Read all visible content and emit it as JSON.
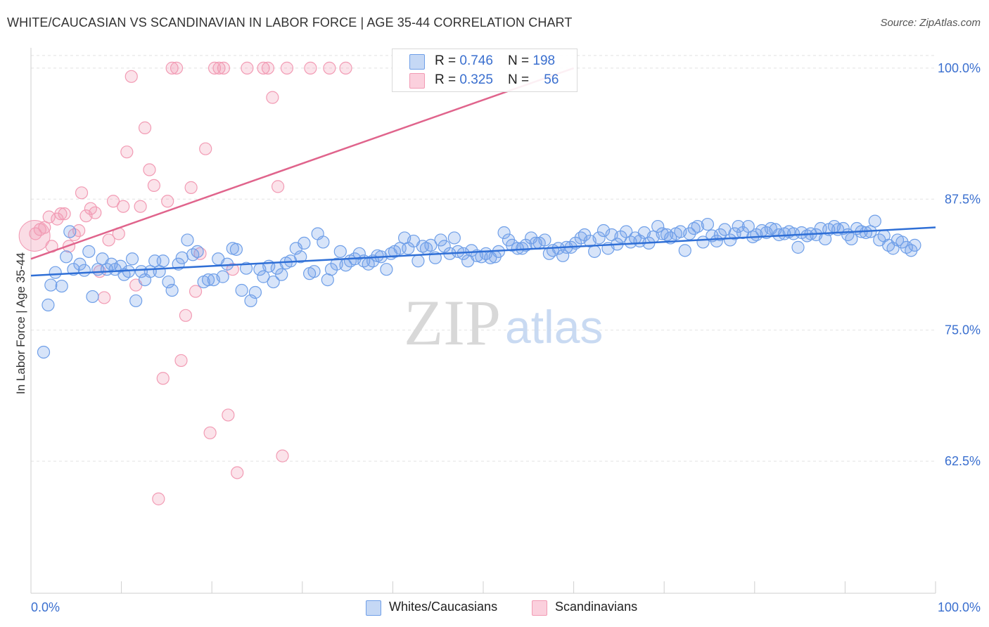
{
  "title": "WHITE/CAUCASIAN VS SCANDINAVIAN IN LABOR FORCE | AGE 35-44 CORRELATION CHART",
  "source": "Source: ZipAtlas.com",
  "watermark": {
    "zip": "ZIP",
    "atlas": "atlas"
  },
  "legend": {
    "rows": [
      {
        "r_label": "R = ",
        "r_value": "0.746",
        "n_label": "N = ",
        "n_value": "198"
      },
      {
        "r_label": "R = ",
        "r_value": "0.325",
        "n_label": "N = ",
        "n_value": "56"
      }
    ]
  },
  "bottom_legend": [
    "Whites/Caucasians",
    "Scandinavians"
  ],
  "chart_data": {
    "type": "scatter",
    "title": "WHITE/CAUCASIAN VS SCANDINAVIAN IN LABOR FORCE | AGE 35-44 CORRELATION CHART",
    "xlabel": "",
    "ylabel": "In Labor Force | Age 35-44",
    "xlim": [
      0,
      100
    ],
    "ylim": [
      50.5,
      101.2
    ],
    "x_tick_labels": [
      "0.0%",
      "100.0%"
    ],
    "y_tick_labels": [
      "100.0%",
      "87.5%",
      "75.0%",
      "62.5%"
    ],
    "y_ticks": [
      100,
      87.5,
      75,
      62.5
    ],
    "grid": true,
    "legend_placement": "top-center",
    "colors": {
      "whites": "#6f9fe8",
      "whites_line": "#2f6fd6",
      "scand": "#f29bb4",
      "scand_line": "#e0648c"
    },
    "series": [
      {
        "name": "Whites/Caucasians",
        "r": 0.746,
        "n": 198,
        "trend": [
          [
            0,
            80.2
          ],
          [
            100,
            84.8
          ]
        ],
        "points": [
          [
            1.4,
            72.9
          ],
          [
            1.9,
            77.4
          ],
          [
            2.2,
            79.3
          ],
          [
            2.7,
            80.5
          ],
          [
            3.4,
            79.2
          ],
          [
            3.9,
            82.0
          ],
          [
            4.3,
            84.4
          ],
          [
            4.7,
            80.8
          ],
          [
            5.4,
            81.3
          ],
          [
            5.9,
            80.7
          ],
          [
            6.4,
            82.5
          ],
          [
            6.8,
            78.2
          ],
          [
            7.4,
            80.8
          ],
          [
            7.9,
            81.8
          ],
          [
            8.4,
            80.8
          ],
          [
            8.9,
            81.3
          ],
          [
            9.3,
            80.8
          ],
          [
            9.9,
            81.1
          ],
          [
            10.3,
            80.3
          ],
          [
            10.8,
            80.6
          ],
          [
            11.2,
            81.8
          ],
          [
            11.6,
            77.8
          ],
          [
            12.2,
            80.6
          ],
          [
            12.6,
            79.8
          ],
          [
            13.2,
            80.6
          ],
          [
            13.7,
            81.6
          ],
          [
            14.2,
            80.6
          ],
          [
            14.6,
            81.6
          ],
          [
            15.2,
            79.6
          ],
          [
            15.6,
            78.8
          ],
          [
            16.3,
            81.3
          ],
          [
            16.7,
            81.9
          ],
          [
            17.3,
            83.6
          ],
          [
            17.9,
            82.2
          ],
          [
            18.4,
            82.5
          ],
          [
            19.1,
            79.6
          ],
          [
            19.6,
            79.8
          ],
          [
            20.2,
            79.8
          ],
          [
            20.7,
            81.8
          ],
          [
            21.2,
            80.1
          ],
          [
            21.7,
            81.3
          ],
          [
            22.3,
            82.8
          ],
          [
            22.7,
            82.7
          ],
          [
            23.3,
            78.8
          ],
          [
            23.8,
            80.9
          ],
          [
            24.3,
            77.8
          ],
          [
            24.8,
            78.6
          ],
          [
            25.3,
            80.8
          ],
          [
            25.7,
            80.1
          ],
          [
            26.3,
            81.1
          ],
          [
            26.8,
            79.6
          ],
          [
            27.2,
            80.9
          ],
          [
            27.7,
            80.3
          ],
          [
            28.2,
            81.4
          ],
          [
            28.7,
            81.6
          ],
          [
            29.3,
            82.8
          ],
          [
            29.8,
            82.0
          ],
          [
            30.2,
            83.3
          ],
          [
            30.8,
            80.4
          ],
          [
            31.3,
            80.6
          ],
          [
            31.7,
            84.2
          ],
          [
            32.3,
            83.4
          ],
          [
            32.8,
            79.8
          ],
          [
            33.2,
            80.8
          ],
          [
            33.8,
            81.3
          ],
          [
            34.2,
            82.5
          ],
          [
            34.8,
            81.2
          ],
          [
            35.3,
            81.6
          ],
          [
            35.8,
            81.8
          ],
          [
            36.3,
            82.3
          ],
          [
            36.8,
            81.6
          ],
          [
            37.3,
            81.3
          ],
          [
            37.8,
            81.6
          ],
          [
            38.3,
            82.1
          ],
          [
            38.7,
            82.0
          ],
          [
            39.3,
            80.8
          ],
          [
            39.8,
            82.3
          ],
          [
            40.2,
            82.5
          ],
          [
            40.8,
            82.8
          ],
          [
            41.3,
            83.8
          ],
          [
            41.7,
            82.8
          ],
          [
            42.3,
            83.5
          ],
          [
            42.8,
            81.6
          ],
          [
            43.3,
            83.0
          ],
          [
            43.7,
            82.8
          ],
          [
            44.2,
            83.1
          ],
          [
            44.7,
            81.9
          ],
          [
            45.3,
            83.6
          ],
          [
            45.7,
            83.0
          ],
          [
            46.3,
            82.3
          ],
          [
            46.8,
            83.8
          ],
          [
            47.2,
            82.5
          ],
          [
            47.8,
            82.3
          ],
          [
            48.3,
            81.6
          ],
          [
            48.7,
            82.6
          ],
          [
            49.3,
            82.1
          ],
          [
            49.8,
            82.0
          ],
          [
            50.3,
            82.3
          ],
          [
            50.8,
            81.9
          ],
          [
            51.3,
            82.0
          ],
          [
            51.7,
            82.5
          ],
          [
            52.3,
            84.3
          ],
          [
            52.8,
            83.6
          ],
          [
            53.2,
            83.1
          ],
          [
            53.8,
            82.8
          ],
          [
            54.3,
            82.8
          ],
          [
            54.7,
            83.1
          ],
          [
            55.3,
            83.8
          ],
          [
            55.8,
            83.3
          ],
          [
            56.2,
            83.3
          ],
          [
            56.8,
            83.6
          ],
          [
            57.3,
            82.3
          ],
          [
            57.7,
            82.6
          ],
          [
            58.3,
            82.8
          ],
          [
            58.8,
            82.1
          ],
          [
            59.2,
            82.9
          ],
          [
            59.7,
            82.9
          ],
          [
            60.2,
            83.3
          ],
          [
            60.8,
            83.8
          ],
          [
            61.2,
            84.1
          ],
          [
            61.8,
            83.5
          ],
          [
            62.3,
            82.5
          ],
          [
            62.8,
            83.8
          ],
          [
            63.3,
            84.5
          ],
          [
            63.8,
            82.8
          ],
          [
            64.2,
            84.1
          ],
          [
            64.8,
            83.2
          ],
          [
            65.2,
            83.9
          ],
          [
            65.8,
            84.4
          ],
          [
            66.3,
            83.4
          ],
          [
            66.8,
            83.8
          ],
          [
            67.3,
            83.5
          ],
          [
            67.8,
            84.3
          ],
          [
            68.3,
            83.3
          ],
          [
            68.8,
            83.9
          ],
          [
            69.3,
            84.9
          ],
          [
            69.8,
            84.2
          ],
          [
            70.3,
            84.1
          ],
          [
            70.7,
            83.8
          ],
          [
            71.3,
            84.2
          ],
          [
            71.8,
            84.4
          ],
          [
            72.3,
            82.6
          ],
          [
            72.8,
            84.2
          ],
          [
            73.3,
            84.7
          ],
          [
            73.7,
            84.9
          ],
          [
            74.3,
            83.4
          ],
          [
            74.8,
            85.1
          ],
          [
            75.3,
            84.0
          ],
          [
            75.8,
            83.5
          ],
          [
            76.2,
            84.1
          ],
          [
            76.7,
            84.6
          ],
          [
            77.3,
            83.6
          ],
          [
            77.8,
            84.2
          ],
          [
            78.2,
            84.9
          ],
          [
            78.7,
            84.3
          ],
          [
            79.3,
            84.9
          ],
          [
            79.8,
            83.9
          ],
          [
            80.2,
            84.1
          ],
          [
            80.8,
            84.5
          ],
          [
            81.3,
            84.3
          ],
          [
            81.8,
            84.7
          ],
          [
            82.3,
            84.6
          ],
          [
            82.7,
            84.1
          ],
          [
            83.3,
            84.2
          ],
          [
            83.8,
            84.4
          ],
          [
            84.3,
            84.2
          ],
          [
            84.8,
            82.9
          ],
          [
            85.2,
            84.3
          ],
          [
            85.8,
            84.0
          ],
          [
            86.2,
            84.2
          ],
          [
            86.8,
            84.1
          ],
          [
            87.3,
            84.7
          ],
          [
            87.8,
            83.7
          ],
          [
            88.2,
            84.6
          ],
          [
            88.8,
            84.9
          ],
          [
            89.2,
            84.6
          ],
          [
            89.8,
            84.7
          ],
          [
            90.3,
            84.1
          ],
          [
            90.7,
            83.7
          ],
          [
            91.3,
            84.7
          ],
          [
            91.8,
            84.4
          ],
          [
            92.3,
            84.3
          ],
          [
            92.8,
            84.4
          ],
          [
            93.3,
            85.4
          ],
          [
            93.8,
            83.6
          ],
          [
            94.3,
            84.0
          ],
          [
            94.8,
            83.1
          ],
          [
            95.3,
            82.8
          ],
          [
            95.8,
            83.6
          ],
          [
            96.3,
            83.4
          ],
          [
            96.8,
            82.9
          ],
          [
            97.3,
            82.6
          ],
          [
            97.7,
            83.1
          ]
        ]
      },
      {
        "name": "Scandinavians",
        "r": 0.325,
        "n": 56,
        "trend": [
          [
            0,
            81.8
          ],
          [
            60,
            100.0
          ]
        ],
        "points": [
          [
            0.5,
            84.2
          ],
          [
            1.0,
            84.6
          ],
          [
            1.5,
            84.8
          ],
          [
            2.0,
            85.8
          ],
          [
            2.3,
            83.0
          ],
          [
            2.9,
            85.6
          ],
          [
            3.3,
            86.1
          ],
          [
            3.7,
            86.1
          ],
          [
            4.2,
            83.0
          ],
          [
            4.8,
            84.1
          ],
          [
            5.3,
            84.5
          ],
          [
            5.6,
            88.1
          ],
          [
            6.1,
            85.9
          ],
          [
            6.6,
            86.6
          ],
          [
            7.1,
            86.2
          ],
          [
            7.6,
            80.6
          ],
          [
            8.1,
            78.1
          ],
          [
            8.6,
            83.6
          ],
          [
            9.1,
            87.3
          ],
          [
            9.7,
            84.2
          ],
          [
            10.2,
            86.8
          ],
          [
            10.6,
            92.0
          ],
          [
            11.1,
            99.2
          ],
          [
            11.6,
            79.3
          ],
          [
            12.1,
            86.8
          ],
          [
            12.6,
            94.3
          ],
          [
            13.1,
            90.3
          ],
          [
            13.6,
            88.8
          ],
          [
            14.1,
            58.9
          ],
          [
            14.6,
            70.4
          ],
          [
            15.1,
            87.3
          ],
          [
            15.6,
            100.0
          ],
          [
            16.1,
            100.0
          ],
          [
            16.6,
            72.1
          ],
          [
            17.1,
            76.4
          ],
          [
            17.7,
            88.6
          ],
          [
            18.2,
            78.7
          ],
          [
            18.7,
            82.3
          ],
          [
            19.3,
            92.3
          ],
          [
            19.8,
            65.2
          ],
          [
            20.3,
            100.0
          ],
          [
            20.8,
            100.0
          ],
          [
            21.3,
            100.0
          ],
          [
            21.8,
            66.9
          ],
          [
            22.3,
            80.8
          ],
          [
            22.8,
            61.4
          ],
          [
            23.9,
            100.0
          ],
          [
            25.7,
            100.0
          ],
          [
            26.2,
            100.0
          ],
          [
            26.7,
            97.2
          ],
          [
            27.3,
            88.7
          ],
          [
            27.8,
            63.0
          ],
          [
            28.3,
            100.0
          ],
          [
            30.9,
            100.0
          ],
          [
            33.0,
            100.0
          ],
          [
            34.8,
            100.0
          ]
        ]
      }
    ]
  }
}
